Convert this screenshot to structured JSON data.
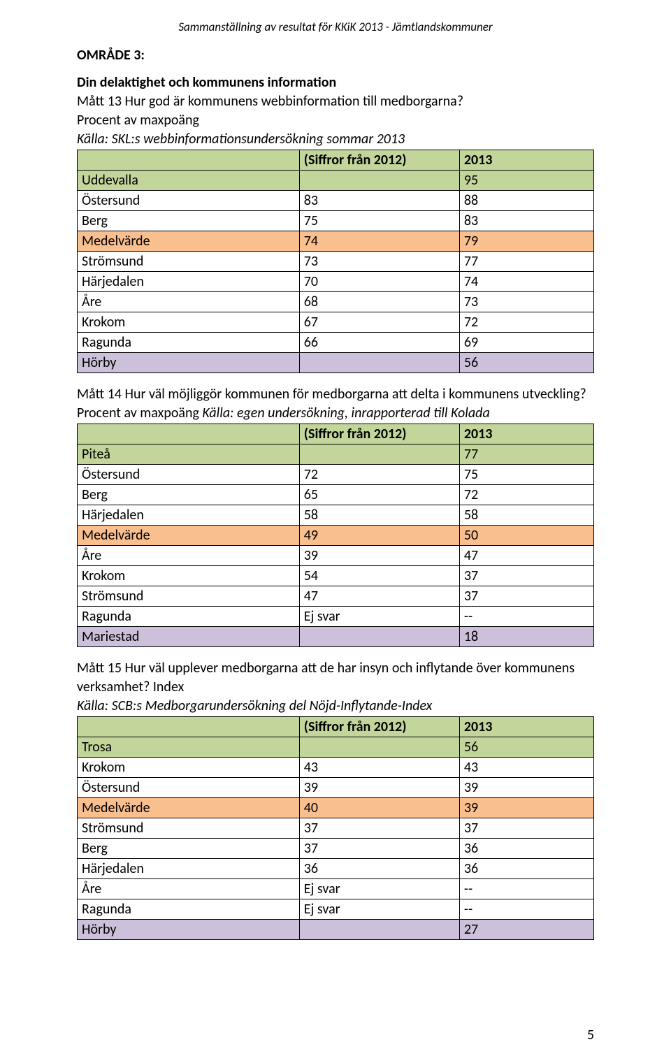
{
  "page": {
    "running_header": "Sammanställning av resultat för KKiK 2013 - Jämtlandskommuner",
    "page_number": "5"
  },
  "section": {
    "heading_line1": "OMRÅDE 3:",
    "heading_line2": "Din delaktighet och kommunens information"
  },
  "colors": {
    "header_bg": "#c2d69b",
    "best_bg": "#c2d69b",
    "normal_bg": "#ffffff",
    "median_bg": "#fabf8f",
    "worst_bg": "#ccc0da",
    "border": "#000000",
    "text": "#000000"
  },
  "table_header": {
    "col_name": "",
    "col_2012": "(Siffror från 2012)",
    "col_2013": "2013"
  },
  "matt13": {
    "intro_plain": "Mått 13 Hur god är kommunens webbinformation till medborgarna?",
    "source_prefix_plain": "Procent av maxpoäng",
    "source_italic": "Källa: SKL:s webbinformationsundersökning sommar 2013",
    "rows": [
      {
        "style": "best",
        "name": "Uddevalla",
        "v2012": "",
        "v2013": "95"
      },
      {
        "style": "normal",
        "name": "Östersund",
        "v2012": "83",
        "v2013": "88"
      },
      {
        "style": "normal",
        "name": "Berg",
        "v2012": "75",
        "v2013": "83"
      },
      {
        "style": "median",
        "name": "Medelvärde",
        "v2012": "74",
        "v2013": "79"
      },
      {
        "style": "normal",
        "name": "Strömsund",
        "v2012": "73",
        "v2013": "77"
      },
      {
        "style": "normal",
        "name": "Härjedalen",
        "v2012": "70",
        "v2013": "74"
      },
      {
        "style": "normal",
        "name": "Åre",
        "v2012": "68",
        "v2013": "73"
      },
      {
        "style": "normal",
        "name": "Krokom",
        "v2012": "67",
        "v2013": "72"
      },
      {
        "style": "normal",
        "name": "Ragunda",
        "v2012": "66",
        "v2013": "69"
      },
      {
        "style": "worst",
        "name": "Hörby",
        "v2012": "",
        "v2013": "56"
      }
    ]
  },
  "matt14": {
    "intro_plain": "Mått 14 Hur väl möjliggör kommunen för medborgarna att delta i kommunens utveckling?",
    "source_prefix_plain": "Procent av maxpoäng ",
    "source_italic": "Källa: egen undersökning, inrapporterad till Kolada",
    "rows": [
      {
        "style": "best",
        "name": "Piteå",
        "v2012": "",
        "v2013": "77"
      },
      {
        "style": "normal",
        "name": "Östersund",
        "v2012": "72",
        "v2013": "75"
      },
      {
        "style": "normal",
        "name": "Berg",
        "v2012": "65",
        "v2013": "72"
      },
      {
        "style": "normal",
        "name": "Härjedalen",
        "v2012": "58",
        "v2013": "58"
      },
      {
        "style": "median",
        "name": "Medelvärde",
        "v2012": "49",
        "v2013": "50"
      },
      {
        "style": "normal",
        "name": "Åre",
        "v2012": "39",
        "v2013": "47"
      },
      {
        "style": "normal",
        "name": "Krokom",
        "v2012": "54",
        "v2013": "37"
      },
      {
        "style": "normal",
        "name": "Strömsund",
        "v2012": "47",
        "v2013": "37"
      },
      {
        "style": "normal",
        "name": "Ragunda",
        "v2012": "Ej svar",
        "v2013": "--"
      },
      {
        "style": "worst",
        "name": "Mariestad",
        "v2012": "",
        "v2013": "18"
      }
    ]
  },
  "matt15": {
    "intro_line1": "Mått 15 Hur väl upplever medborgarna att de har insyn och inflytande över kommunens",
    "intro_line2": "verksamhet? Index",
    "source_italic": "Källa: SCB:s Medborgarundersökning del Nöjd-Inflytande-Index",
    "rows": [
      {
        "style": "best",
        "name": "Trosa",
        "v2012": "",
        "v2013": "56"
      },
      {
        "style": "normal",
        "name": "Krokom",
        "v2012": "43",
        "v2013": "43"
      },
      {
        "style": "normal",
        "name": "Östersund",
        "v2012": "39",
        "v2013": "39"
      },
      {
        "style": "median",
        "name": "Medelvärde",
        "v2012": "40",
        "v2013": "39"
      },
      {
        "style": "normal",
        "name": "Strömsund",
        "v2012": "37",
        "v2013": "37"
      },
      {
        "style": "normal",
        "name": "Berg",
        "v2012": "37",
        "v2013": "36"
      },
      {
        "style": "normal",
        "name": "Härjedalen",
        "v2012": "36",
        "v2013": "36"
      },
      {
        "style": "normal",
        "name": "Åre",
        "v2012": "Ej svar",
        "v2013": "--"
      },
      {
        "style": "normal",
        "name": "Ragunda",
        "v2012": "Ej svar",
        "v2013": "--"
      },
      {
        "style": "worst",
        "name": "Hörby",
        "v2012": "",
        "v2013": "27"
      }
    ]
  }
}
